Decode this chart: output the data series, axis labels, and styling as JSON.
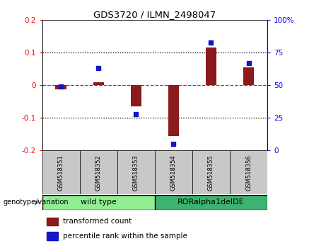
{
  "title": "GDS3720 / ILMN_2498047",
  "categories": [
    "GSM518351",
    "GSM518352",
    "GSM518353",
    "GSM518354",
    "GSM518355",
    "GSM518356"
  ],
  "red_values": [
    -0.012,
    0.01,
    -0.065,
    -0.155,
    0.115,
    0.055
  ],
  "blue_values": [
    49,
    63,
    28,
    5,
    83,
    67
  ],
  "ylim_left": [
    -0.2,
    0.2
  ],
  "ylim_right": [
    0,
    100
  ],
  "yticks_left": [
    -0.2,
    -0.1,
    0.0,
    0.1,
    0.2
  ],
  "yticks_right": [
    0,
    25,
    50,
    75,
    100
  ],
  "ytick_labels_right": [
    "0",
    "25",
    "50",
    "75",
    "100%"
  ],
  "ytick_labels_left": [
    "-0.2",
    "-0.1",
    "0",
    "0.1",
    "0.2"
  ],
  "red_color": "#8B1A1A",
  "blue_color": "#1414C8",
  "dashed_line_color": "#CC2222",
  "genotype_label": "genotype/variation",
  "wildtype_label": "wild type",
  "ror_label": "RORalpha1delDE",
  "legend_red": "transformed count",
  "legend_blue": "percentile rank within the sample",
  "wildtype_color": "#90EE90",
  "ror_color": "#3CB371",
  "bar_width": 0.3,
  "sample_box_color": "#C8C8C8",
  "dotted_line_color": "black"
}
